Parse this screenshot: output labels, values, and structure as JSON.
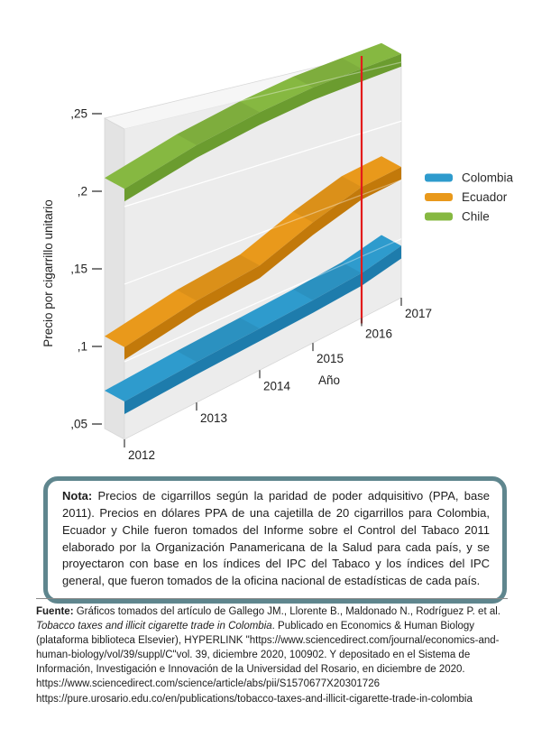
{
  "chart_data": {
    "type": "line",
    "style": "3d-ribbon",
    "title": "",
    "xlabel": "Año",
    "ylabel": "Precio por cigarrillo unitario",
    "x": [
      2012,
      2013,
      2014,
      2015,
      2016,
      2017
    ],
    "ylim": [
      0.05,
      0.25
    ],
    "ytick_values": [
      0.05,
      0.1,
      0.15,
      0.2,
      0.25
    ],
    "ytick_labels": [
      ",05",
      ",1",
      ",15",
      ",2",
      ",25"
    ],
    "grid": true,
    "legend_position": "right",
    "series": [
      {
        "name": "Colombia",
        "color": "#2E9BCD",
        "color_dark": "#1E7CAC",
        "values": [
          0.082,
          0.086,
          0.089,
          0.092,
          0.096,
          0.104
        ]
      },
      {
        "name": "Ecuador",
        "color": "#E9991B",
        "color_dark": "#C2790A",
        "values": [
          0.117,
          0.128,
          0.135,
          0.152,
          0.166,
          0.171
        ]
      },
      {
        "name": "Chile",
        "color": "#86B841",
        "color_dark": "#6B9C2F",
        "values": [
          0.219,
          0.235,
          0.247,
          0.256,
          0.262,
          0.267
        ]
      }
    ],
    "reference_line": {
      "x": 2016,
      "color": "#E31B1B"
    },
    "wall_color": "#ececec",
    "wall_side_color": "#e3e3e3",
    "wall_top_color": "#f6f6f6"
  },
  "note": {
    "label": "Nota:",
    "text": " Precios de cigarrillos según la paridad de poder adquisitivo (PPA, base 2011). Precios en dólares PPA de una cajetilla de 20 cigarrillos para Colombia, Ecuador y Chile fueron tomados del Informe sobre el Control del Tabaco 2011 elaborado por la Organización Panamericana de la Salud para cada país, y se proyectaron con base en los índices del IPC del Tabaco y los índices del IPC general, que fueron tomados de la oficina nacional de estadísticas de cada país."
  },
  "fuente": {
    "label": "Fuente:",
    "text_before_title": " Gráficos tomados del artículo de Gallego JM., Llorente B., Maldonado N., Rodríguez P. et al. ",
    "article_title": "Tobacco taxes and illicit cigarette trade in Colombia",
    "text_after_title": ". Publicado en Economics & Human Biology (plataforma biblioteca Elsevier),  HYPERLINK \"https://www.sciencedirect.com/journal/economics-and-human-biology/vol/39/suppl/C\"vol. 39, diciembre 2020, 100902. Y depositado en el Sistema de Información, Investigación e Innovación de la Universidad del Rosario, en diciembre de 2020. https://www.sciencedirect.com/science/article/abs/pii/S1570677X20301726",
    "url_line": "https://pure.urosario.edu.co/en/publications/tobacco-taxes-and-illicit-cigarette-trade-in-colombia"
  }
}
